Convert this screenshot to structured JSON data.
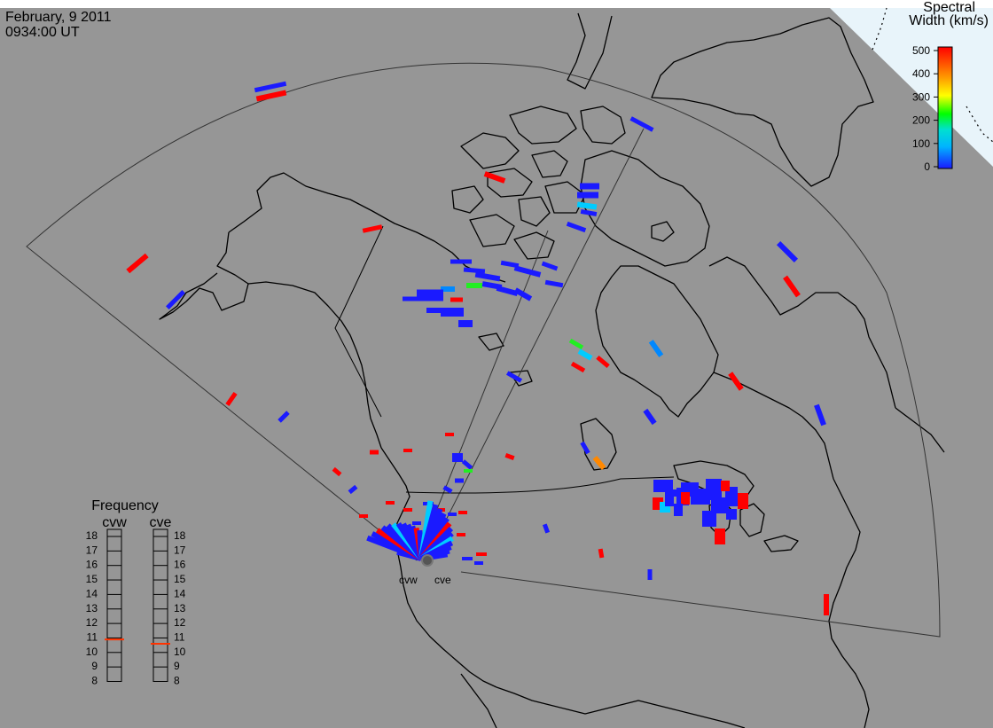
{
  "header": {
    "date": "February, 9 2011",
    "time": "0934:00 UT"
  },
  "colorbar": {
    "title_line1": "Spectral",
    "title_line2": "Width (km/s)",
    "ticks": [
      "500",
      "400",
      "300",
      "200",
      "100",
      "0"
    ],
    "min": 0,
    "max": 500
  },
  "radars": {
    "west_label": "cvw",
    "east_label": "cve"
  },
  "frequency_panel": {
    "title": "Frequency",
    "col_left": "cvw",
    "col_right": "cve",
    "ticks": [
      "18",
      "17",
      "16",
      "15",
      "14",
      "13",
      "12",
      "11",
      "10",
      "9",
      "8"
    ],
    "cvw_value": 10.9,
    "cve_value": 10.6,
    "min": 8,
    "max": 18
  },
  "colors": {
    "background": "#969696",
    "sea_ice": "#e8f4fa",
    "low_width": "#1a1aff",
    "high_width": "#ff0000"
  }
}
